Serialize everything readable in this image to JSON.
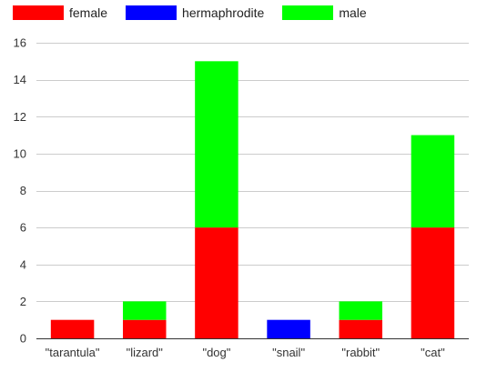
{
  "chart_data": {
    "type": "bar",
    "stacked": true,
    "categories": [
      "\"tarantula\"",
      "\"lizard\"",
      "\"dog\"",
      "\"snail\"",
      "\"rabbit\"",
      "\"cat\""
    ],
    "series": [
      {
        "name": "female",
        "color": "#ff0000",
        "values": [
          1,
          1,
          6,
          0,
          1,
          6
        ]
      },
      {
        "name": "hermaphrodite",
        "color": "#0000ff",
        "values": [
          0,
          0,
          0,
          1,
          0,
          0
        ]
      },
      {
        "name": "male",
        "color": "#00ff00",
        "values": [
          0,
          1,
          9,
          0,
          1,
          5
        ]
      }
    ],
    "ylim": [
      0,
      16
    ],
    "yticks": [
      0,
      2,
      4,
      6,
      8,
      10,
      12,
      14,
      16
    ],
    "grid": true,
    "legend_position": "top-left",
    "title": "",
    "xlabel": "",
    "ylabel": ""
  }
}
